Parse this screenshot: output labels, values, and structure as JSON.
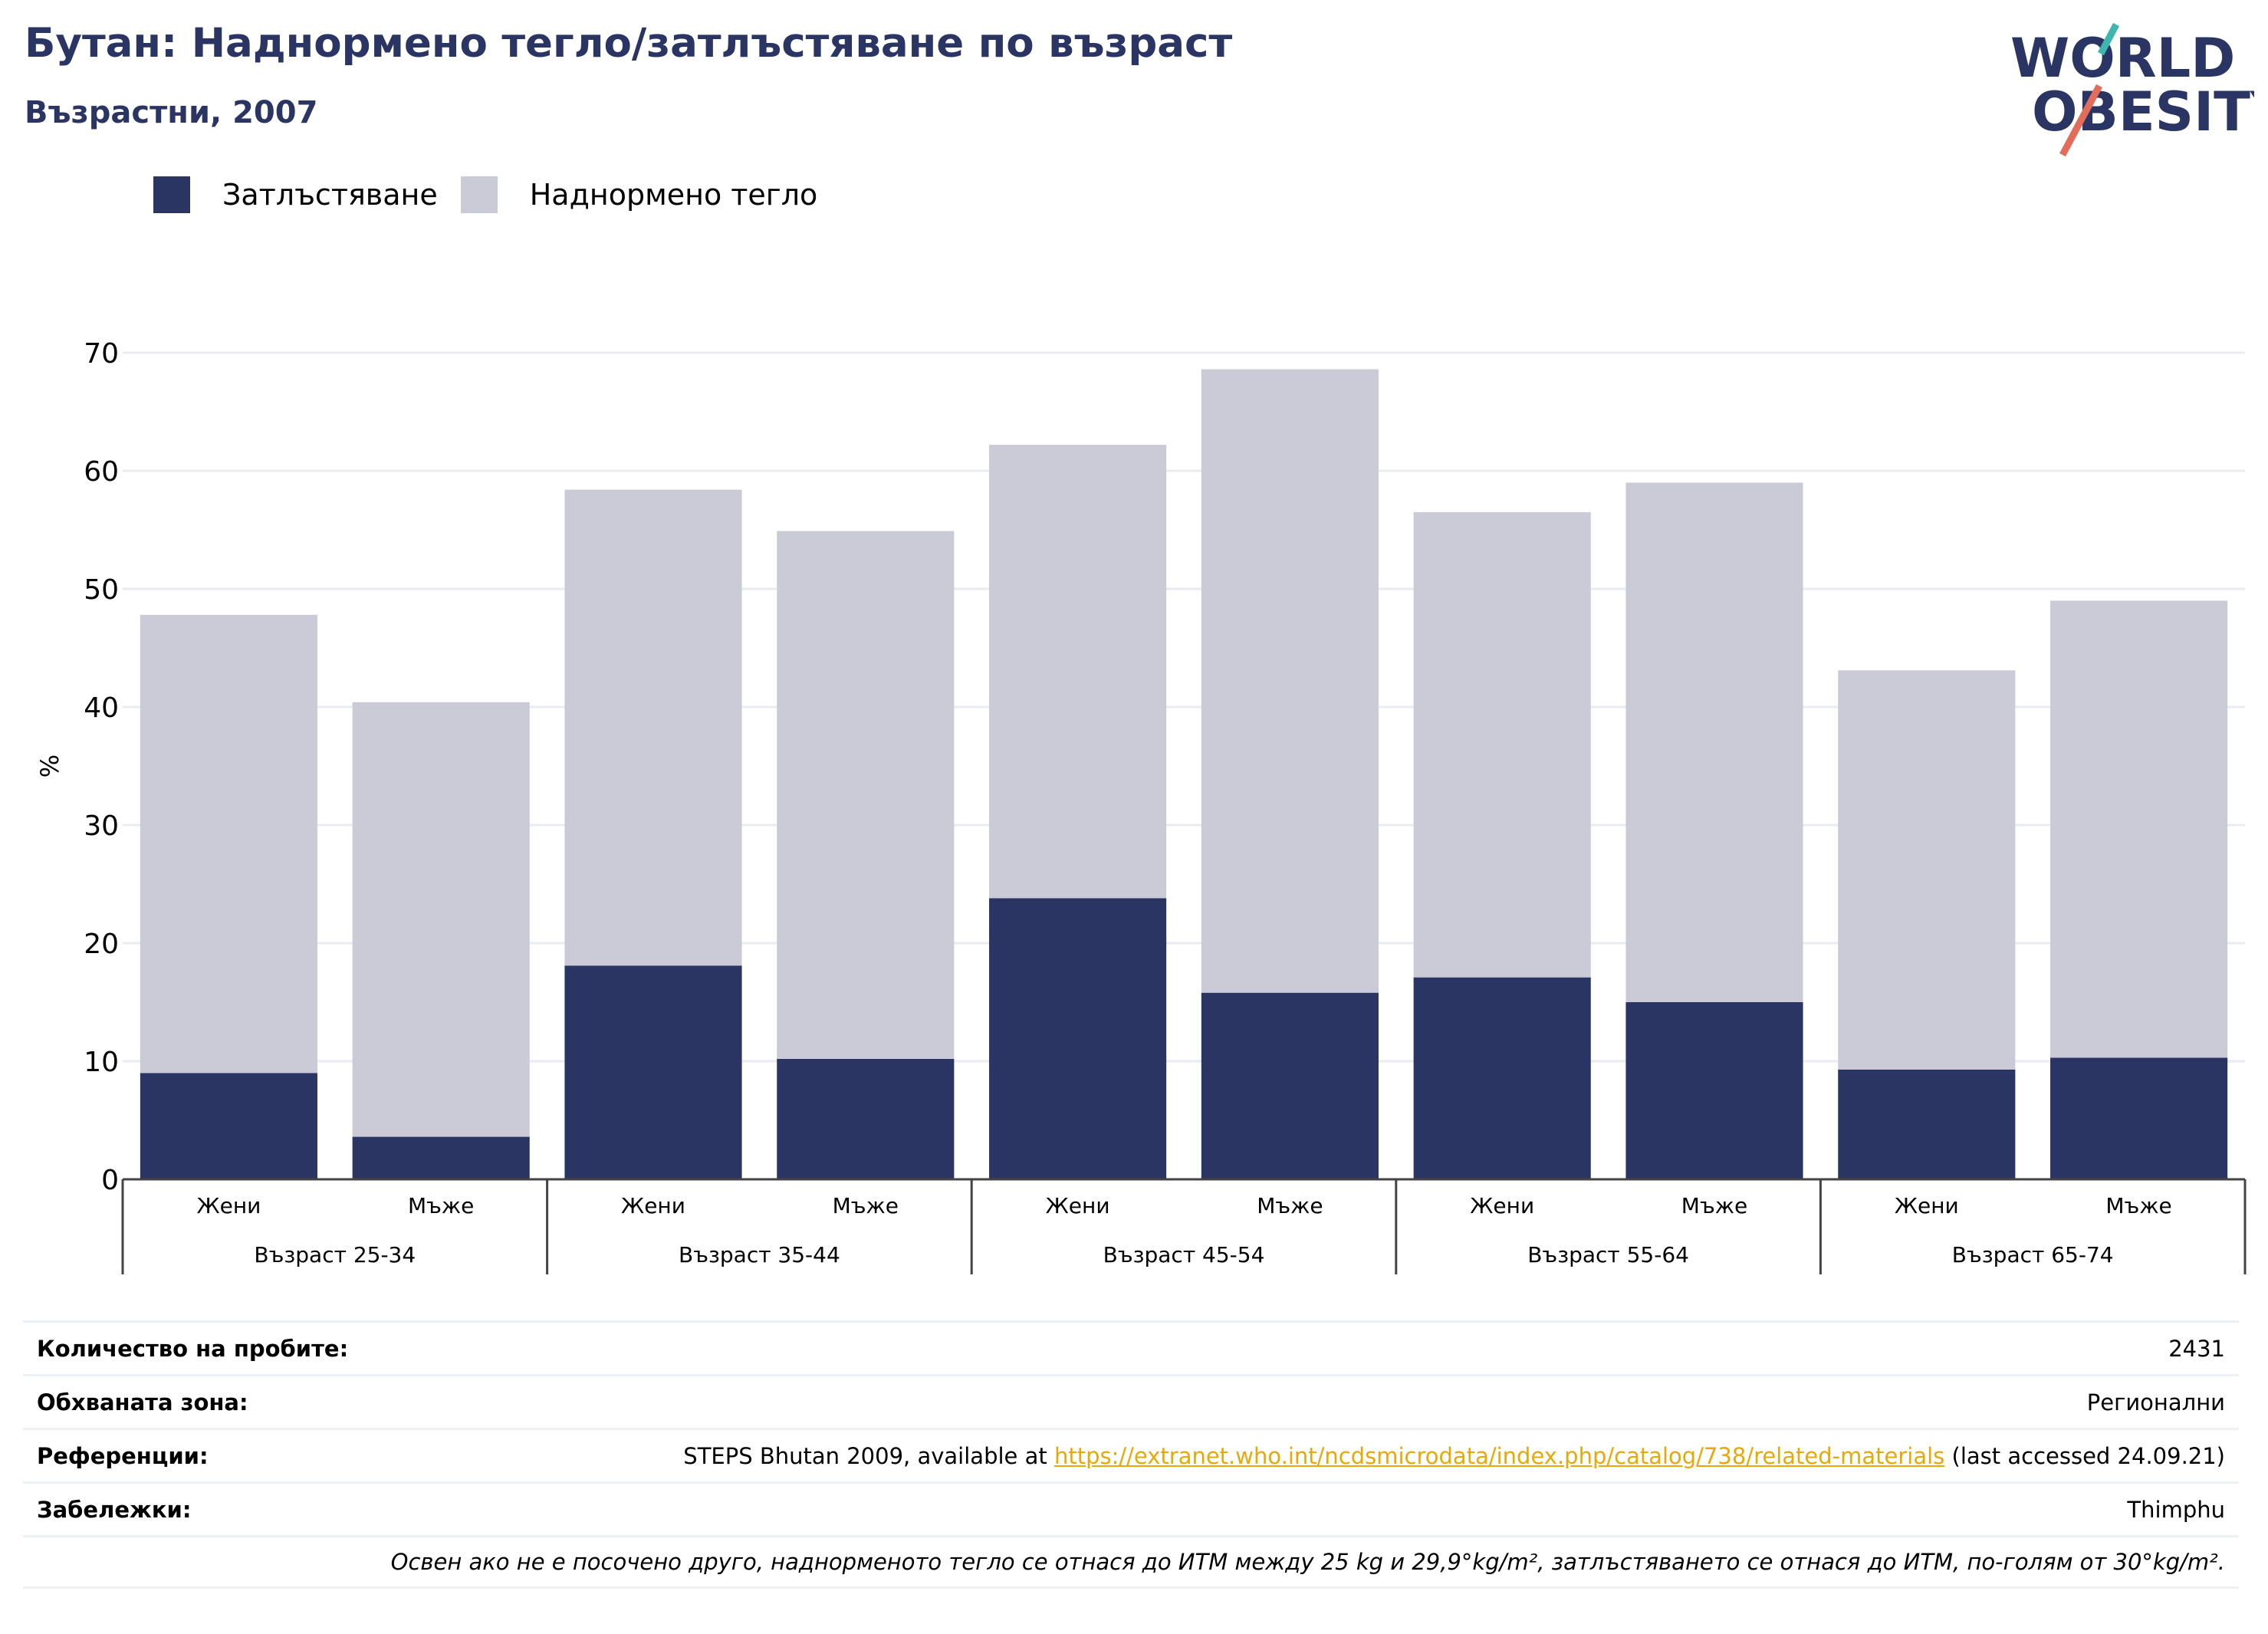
{
  "header": {
    "title": "Бутан: Наднормено тегло/затлъстяване по възраст",
    "subtitle": "Възрастни, 2007"
  },
  "logo": {
    "line1": "WORLD",
    "line2": "OBESITY",
    "name": "world-obesity-logo"
  },
  "colors": {
    "obesity": "#2a3563",
    "overweight": "#cacbd7",
    "title": "#2a3563",
    "link": "#e8a80c",
    "grid": "#e9ebf0"
  },
  "chart_data": {
    "type": "bar",
    "stacked": true,
    "ylabel": "%",
    "ylim": [
      0,
      70
    ],
    "yticks": [
      0,
      10,
      20,
      30,
      40,
      50,
      60,
      70
    ],
    "grid": true,
    "legend_position": "top-left",
    "groups": [
      "Възраст 25-34",
      "Възраст 35-44",
      "Възраст 45-54",
      "Възраст 55-64",
      "Възраст 65-74"
    ],
    "categories": [
      "Жени",
      "Мъже",
      "Жени",
      "Мъже",
      "Жени",
      "Мъже",
      "Жени",
      "Мъже",
      "Жени",
      "Мъже"
    ],
    "series": [
      {
        "name": "Затлъстяване",
        "values": [
          9.0,
          3.6,
          18.1,
          10.2,
          23.8,
          15.8,
          17.1,
          15.0,
          9.3,
          10.3
        ]
      },
      {
        "name": "Наднормено тегло",
        "values": [
          38.8,
          36.8,
          40.3,
          44.7,
          38.4,
          52.8,
          39.4,
          44.0,
          33.8,
          38.7
        ]
      }
    ]
  },
  "info": {
    "sample_size_label": "Количество на пробите:",
    "sample_size_value": "2431",
    "area_label": "Обхваната зона:",
    "area_value": "Регионални",
    "references_label": "Референции:",
    "references_prefix": "STEPS Bhutan 2009, available at ",
    "references_link": "https://extranet.who.int/ncdsmicrodata/index.php/catalog/738/related-materials",
    "references_suffix": " (last accessed 24.09.21)",
    "notes_label": "Забележки:",
    "notes_value": "Thimphu",
    "footnote": "Освен ако не е посочено друго, наднорменото тегло се отнася до ИТМ между 25 kg и 29,9°kg/m², затлъстяването се отнася до ИТМ, по-голям от 30°kg/m²."
  }
}
